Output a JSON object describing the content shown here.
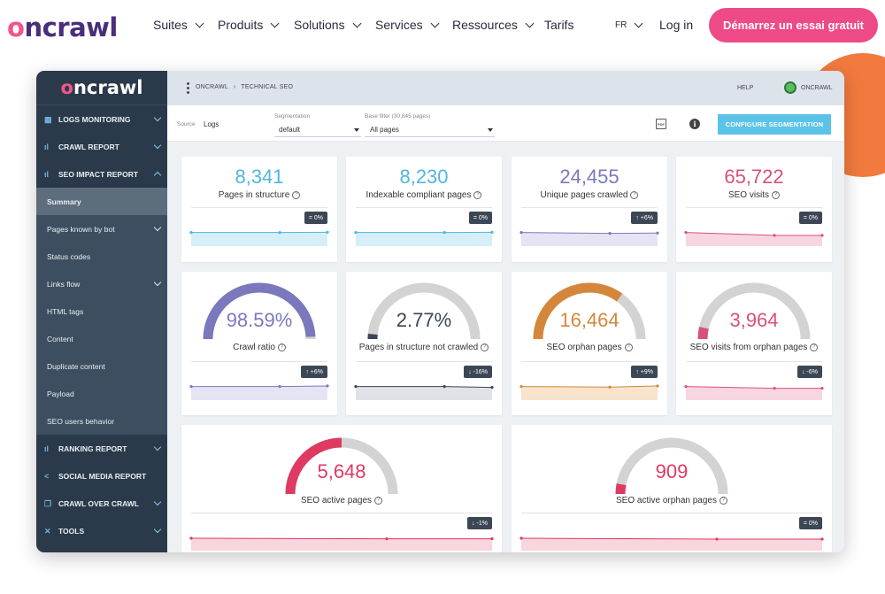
{
  "site": {
    "logo_first": "o",
    "logo_rest": "ncrawl",
    "nav": [
      {
        "label": "Suites",
        "has_menu": true
      },
      {
        "label": "Produits",
        "has_menu": true
      },
      {
        "label": "Solutions",
        "has_menu": true
      },
      {
        "label": "Services",
        "has_menu": true
      },
      {
        "label": "Ressources",
        "has_menu": true
      },
      {
        "label": "Tarifs",
        "has_menu": false
      }
    ],
    "lang": "FR",
    "login": "Log in",
    "cta": "Démarrez un essai gratuit",
    "colors": {
      "brand_pink": "#ee4a87",
      "brand_purple": "#4a2e7c",
      "accent_orange": "#f27a3e"
    }
  },
  "app": {
    "logo_first": "o",
    "logo_rest": "ncrawl",
    "breadcrumb": [
      "ONCRAWL",
      "TECHNICAL SEO"
    ],
    "help": "HELP",
    "account": "ONCRAWL",
    "sidebar": [
      {
        "label": "LOGS MONITORING",
        "type": "section",
        "icon": "calendar-icon",
        "chevron": "down"
      },
      {
        "label": "CRAWL REPORT",
        "type": "section",
        "icon": "bar-chart-icon",
        "chevron": "down"
      },
      {
        "label": "SEO IMPACT REPORT",
        "type": "section",
        "icon": "bar-chart-icon",
        "chevron": "up"
      },
      {
        "label": "Summary",
        "type": "sub",
        "active": true
      },
      {
        "label": "Pages known by bot",
        "type": "sub",
        "chevron": "down"
      },
      {
        "label": "Status codes",
        "type": "sub"
      },
      {
        "label": "Links flow",
        "type": "sub",
        "chevron": "down"
      },
      {
        "label": "HTML tags",
        "type": "sub"
      },
      {
        "label": "Content",
        "type": "sub"
      },
      {
        "label": "Duplicate content",
        "type": "sub"
      },
      {
        "label": "Payload",
        "type": "sub"
      },
      {
        "label": "SEO users behavior",
        "type": "sub"
      },
      {
        "label": "RANKING REPORT",
        "type": "section",
        "icon": "bar-chart-icon",
        "chevron": "down"
      },
      {
        "label": "SOCIAL MEDIA REPORT",
        "type": "section",
        "icon": "share-icon"
      },
      {
        "label": "CRAWL OVER CRAWL",
        "type": "section",
        "icon": "copy-icon",
        "chevron": "down"
      },
      {
        "label": "TOOLS",
        "type": "section",
        "icon": "tools-icon",
        "chevron": "down"
      }
    ],
    "filters": {
      "source_label": "Source",
      "source_value": "Logs",
      "segmentation_label": "Segmentation",
      "segmentation_value": "default",
      "base_filter_label": "Base filter (30,845 pages)",
      "base_filter_value": "All pages",
      "pdf_icon": "PDF",
      "info_icon": "i",
      "configure_button": "CONFIGURE SEGMENTATION"
    },
    "cards": [
      {
        "value": "8,341",
        "label": "Pages in structure",
        "badge": "= 0%",
        "color": "#4fb6df",
        "fill": "#d5eef8",
        "trend": [
          0.5,
          0.5,
          0.48
        ],
        "kind": "number"
      },
      {
        "value": "8,230",
        "label": "Indexable compliant pages",
        "badge": "= 0%",
        "color": "#4fb6df",
        "fill": "#d5eef8",
        "trend": [
          0.5,
          0.5,
          0.48
        ],
        "kind": "number"
      },
      {
        "value": "24,455",
        "label": "Unique pages crawled",
        "badge": "↑ +6%",
        "color": "#7b78bd",
        "fill": "#e5e4f3",
        "trend": [
          0.5,
          0.58,
          0.55
        ],
        "kind": "number"
      },
      {
        "value": "65,722",
        "label": "SEO visits",
        "badge": "= 0%",
        "color": "#d9507e",
        "fill": "#f7d6e2",
        "trend": [
          0.5,
          0.75,
          0.75
        ],
        "kind": "number"
      },
      {
        "value": "98.59%",
        "label": "Crawl ratio",
        "badge": "↑ +6%",
        "color": "#7b78bd",
        "fill": "#e5e4f3",
        "gauge": 0.9859,
        "trend": [
          0.5,
          0.5,
          0.45
        ],
        "kind": "gauge"
      },
      {
        "value": "2.77%",
        "label": "Pages in structure not crawled",
        "badge": "↓ -16%",
        "color": "#3a4654",
        "fill": "#dfe2e6",
        "gauge": 0.0277,
        "trend": [
          0.5,
          0.5,
          0.58
        ],
        "kind": "gauge"
      },
      {
        "value": "16,464",
        "label": "SEO orphan pages",
        "badge": "↑ +9%",
        "color": "#d4873a",
        "fill": "#f8e3cd",
        "gauge": 0.7,
        "trend": [
          0.5,
          0.55,
          0.45
        ],
        "kind": "gauge"
      },
      {
        "value": "3,964",
        "label": "SEO visits from orphan pages",
        "badge": "↓ -6%",
        "color": "#d9507e",
        "fill": "#f7d6e2",
        "gauge": 0.07,
        "trend": [
          0.5,
          0.65,
          0.65
        ],
        "kind": "gauge"
      },
      {
        "value": "5,648",
        "label": "SEO active pages",
        "badge": "↓ -1%",
        "color": "#de3a62",
        "fill": "#f9d5de",
        "gauge": 0.5,
        "trend": [
          0.5,
          0.55,
          0.55
        ],
        "kind": "gauge"
      },
      {
        "value": "909",
        "label": "SEO active orphan pages",
        "badge": "= 0%",
        "color": "#de3a62",
        "fill": "#f9d5de",
        "gauge": 0.06,
        "trend": [
          0.5,
          0.58,
          0.58
        ],
        "kind": "gauge"
      }
    ]
  }
}
